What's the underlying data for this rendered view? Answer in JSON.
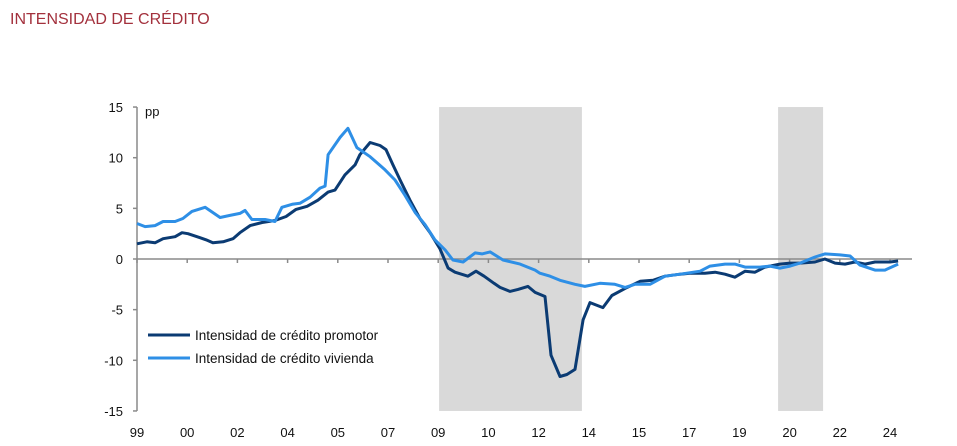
{
  "title": "INTENSIDAD DE CRÉDITO",
  "chart_data": {
    "type": "line",
    "title": "INTENSIDAD DE CRÉDITO",
    "ylabel": "pp",
    "xlabel": "",
    "ylim": [
      -15,
      15
    ],
    "yticks": [
      15,
      10,
      5,
      0,
      -5,
      -10,
      -15
    ],
    "xlim": [
      1999,
      2024.5
    ],
    "xtick_labels": [
      "99",
      "00",
      "02",
      "04",
      "05",
      "07",
      "09",
      "10",
      "12",
      "14",
      "15",
      "17",
      "19",
      "20",
      "22",
      "24"
    ],
    "shaded_periods": [
      [
        2009.07,
        2013.83
      ],
      [
        2020.37,
        2021.87
      ]
    ],
    "legend_position": "bottom-left",
    "series": [
      {
        "name": "Intensidad de crédito promotor",
        "color": "#0b3b73",
        "x": [
          1999.0,
          1999.33,
          1999.6,
          1999.87,
          2000.27,
          2000.5,
          2000.7,
          2001.1,
          2001.3,
          2001.53,
          2001.87,
          2002.2,
          2002.43,
          2002.77,
          2003.17,
          2003.6,
          2003.97,
          2004.3,
          2004.67,
          2005.03,
          2005.37,
          2005.6,
          2005.93,
          2006.27,
          2006.43,
          2006.77,
          2007.1,
          2007.3,
          2007.53,
          2007.77,
          2008.1,
          2008.43,
          2008.77,
          2009.1,
          2009.37,
          2009.6,
          2010.03,
          2010.3,
          2010.57,
          2010.9,
          2011.1,
          2011.43,
          2011.7,
          2012.03,
          2012.27,
          2012.6,
          2012.8,
          2013.1,
          2013.33,
          2013.6,
          2013.87,
          2014.1,
          2014.53,
          2014.83,
          2015.27,
          2015.77,
          2016.2,
          2016.6,
          2017.1,
          2017.43,
          2017.93,
          2018.27,
          2018.6,
          2018.93,
          2019.27,
          2019.6,
          2019.93,
          2020.43,
          2020.77,
          2021.1,
          2021.6,
          2021.93,
          2022.27,
          2022.6,
          2022.93,
          2023.27,
          2023.6,
          2024.1,
          2024.37
        ],
        "y": [
          1.5,
          1.7,
          1.6,
          2.0,
          2.2,
          2.6,
          2.5,
          2.1,
          1.9,
          1.6,
          1.7,
          2.0,
          2.6,
          3.3,
          3.6,
          3.8,
          4.2,
          4.9,
          5.2,
          5.8,
          6.6,
          6.8,
          8.3,
          9.3,
          10.3,
          11.5,
          11.2,
          10.8,
          9.3,
          7.8,
          5.8,
          4.0,
          2.6,
          1.0,
          -0.9,
          -1.3,
          -1.7,
          -1.2,
          -1.7,
          -2.4,
          -2.8,
          -3.2,
          -3.0,
          -2.7,
          -3.3,
          -3.7,
          -9.5,
          -11.6,
          -11.4,
          -10.9,
          -6.0,
          -4.3,
          -4.8,
          -3.6,
          -2.9,
          -2.2,
          -2.1,
          -1.7,
          -1.5,
          -1.4,
          -1.4,
          -1.3,
          -1.5,
          -1.8,
          -1.2,
          -1.3,
          -0.8,
          -0.5,
          -0.4,
          -0.4,
          -0.3,
          0.0,
          -0.4,
          -0.5,
          -0.3,
          -0.5,
          -0.3,
          -0.3,
          -0.2
        ]
      },
      {
        "name": "Intensidad de crédito vivienda",
        "color": "#2e8fe6",
        "x": [
          1999,
          1999.27,
          1999.6,
          1999.87,
          2000.27,
          2000.53,
          2000.83,
          2001.27,
          2001.77,
          2002.1,
          2002.43,
          2002.6,
          2002.83,
          2003.27,
          2003.6,
          2003.83,
          2004.17,
          2004.43,
          2004.77,
          2005.1,
          2005.27,
          2005.37,
          2005.77,
          2006.03,
          2006.33,
          2006.77,
          2007.27,
          2007.6,
          2007.93,
          2008.27,
          2008.6,
          2008.93,
          2009.27,
          2009.53,
          2009.87,
          2010.27,
          2010.5,
          2010.77,
          2011.2,
          2011.77,
          2012.27,
          2012.43,
          2012.77,
          2013.1,
          2013.6,
          2013.93,
          2014.43,
          2014.93,
          2015.27,
          2015.6,
          2016.1,
          2016.6,
          2017.1,
          2017.77,
          2018.1,
          2018.6,
          2018.93,
          2019.27,
          2019.77,
          2020.1,
          2020.43,
          2020.77,
          2021.1,
          2021.6,
          2021.93,
          2022.43,
          2022.77,
          2023.1,
          2023.6,
          2023.93,
          2024.37
        ],
        "y": [
          3.5,
          3.2,
          3.3,
          3.7,
          3.7,
          4.0,
          4.7,
          5.1,
          4.1,
          4.3,
          4.5,
          4.8,
          3.9,
          3.9,
          3.7,
          5.1,
          5.4,
          5.5,
          6.1,
          7.0,
          7.2,
          10.3,
          12.0,
          12.9,
          11.0,
          10.1,
          8.8,
          7.8,
          6.3,
          4.6,
          3.4,
          1.9,
          0.9,
          -0.1,
          -0.3,
          0.6,
          0.5,
          0.7,
          -0.1,
          -0.5,
          -1.1,
          -1.4,
          -1.7,
          -2.1,
          -2.5,
          -2.7,
          -2.4,
          -2.5,
          -2.8,
          -2.5,
          -2.5,
          -1.7,
          -1.5,
          -1.2,
          -0.7,
          -0.5,
          -0.5,
          -0.8,
          -0.8,
          -0.7,
          -0.9,
          -0.7,
          -0.4,
          0.2,
          0.5,
          0.4,
          0.3,
          -0.6,
          -1.1,
          -1.1,
          -0.5
        ]
      }
    ]
  }
}
